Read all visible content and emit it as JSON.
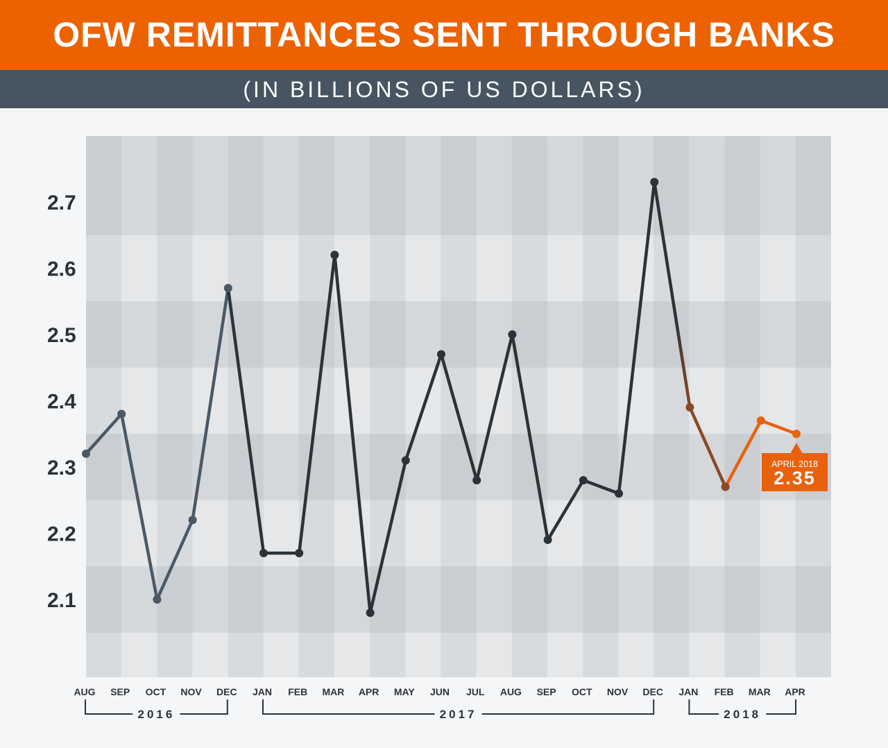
{
  "header": {
    "title": "OFW REMITTANCES SENT THROUGH BANKS",
    "subtitle": "(IN BILLIONS OF US DOLLARS)"
  },
  "chart_data": {
    "type": "line",
    "title": "OFW REMITTANCES SENT THROUGH BANKS",
    "subtitle": "(IN BILLIONS OF US DOLLARS)",
    "categories": [
      "AUG",
      "SEP",
      "OCT",
      "NOV",
      "DEC",
      "JAN",
      "FEB",
      "MAR",
      "APR",
      "MAY",
      "JUN",
      "JUL",
      "AUG",
      "SEP",
      "OCT",
      "NOV",
      "DEC",
      "JAN",
      "FEB",
      "MAR",
      "APR"
    ],
    "year_groups": [
      {
        "label": "2016",
        "from": 0,
        "to": 4
      },
      {
        "label": "2017",
        "from": 5,
        "to": 16
      },
      {
        "label": "2018",
        "from": 17,
        "to": 20
      }
    ],
    "values": [
      2.32,
      2.38,
      2.1,
      2.22,
      2.57,
      2.17,
      2.17,
      2.62,
      2.08,
      2.31,
      2.47,
      2.28,
      2.5,
      2.19,
      2.28,
      2.26,
      2.73,
      2.39,
      2.27,
      2.37,
      2.35
    ],
    "yticks": [
      2.1,
      2.2,
      2.3,
      2.4,
      2.5,
      2.6,
      2.7
    ],
    "ylim": [
      1.98,
      2.8
    ],
    "grid": true,
    "colors": {
      "2016": "#4a5965",
      "2017": "#2b3238",
      "2018_transition": "#8b4a26",
      "2018": "#e8610e"
    },
    "callout": {
      "label": "APRIL 2018",
      "value": "2.35"
    }
  }
}
